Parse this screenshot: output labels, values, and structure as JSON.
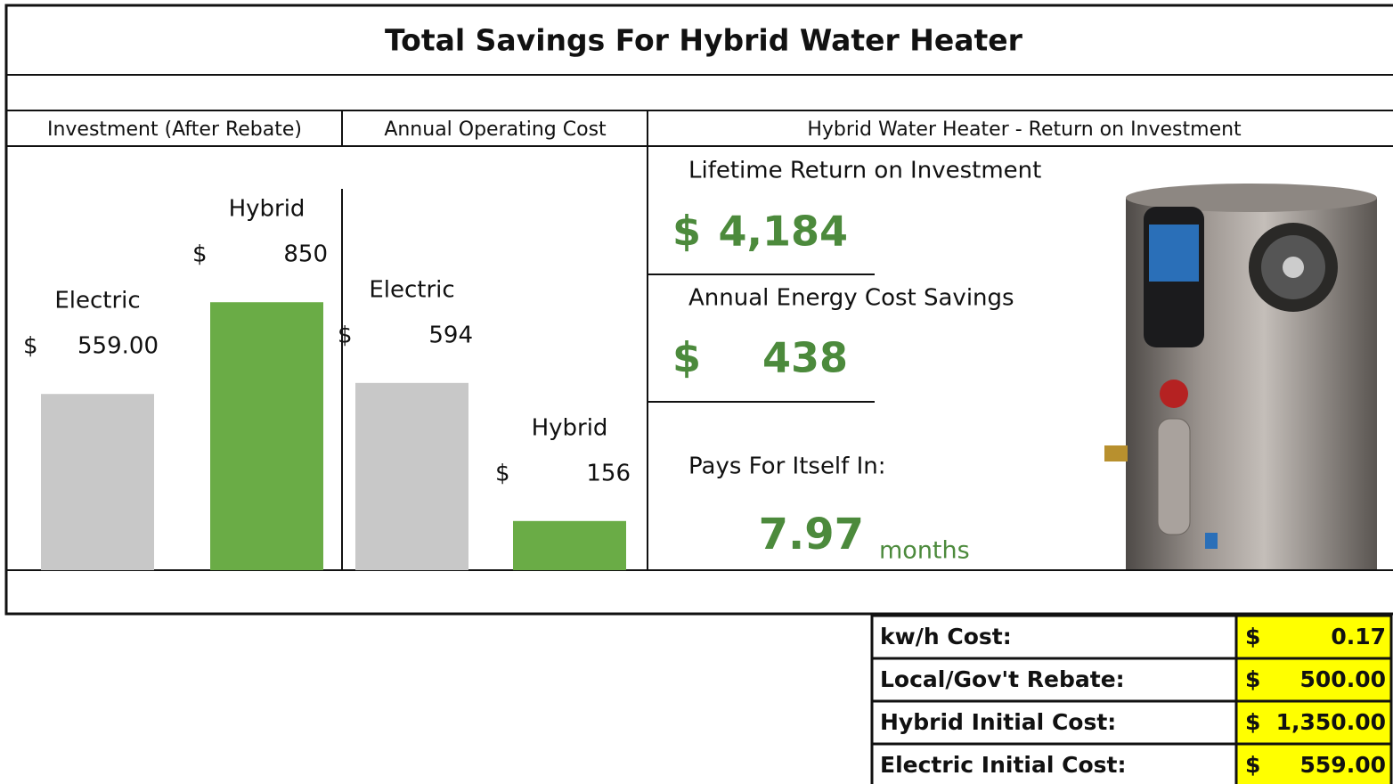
{
  "header": {
    "title": "Total Savings For Hybrid Water Heater"
  },
  "chart_data": [
    {
      "type": "bar",
      "title": "Investment (After Rebate)",
      "categories": [
        "Electric",
        "Hybrid"
      ],
      "currency": "$",
      "values": [
        559,
        850
      ],
      "value_labels": [
        "559.00",
        "850"
      ],
      "colors": [
        "#c8c8c8",
        "#6aac46"
      ],
      "ylim": [
        0,
        1300
      ]
    },
    {
      "type": "bar",
      "title": "Annual Operating Cost",
      "categories": [
        "Electric",
        "Hybrid"
      ],
      "currency": "$",
      "values": [
        594,
        156
      ],
      "colors": [
        "#c8c8c8",
        "#6aac46"
      ],
      "ylim": [
        0,
        1300
      ]
    }
  ],
  "roi": {
    "title": "Hybrid Water Heater - Return on Investment",
    "lifetime_label": "Lifetime Return on Investment",
    "lifetime_currency": "$",
    "lifetime_value": "4,184",
    "annual_label": "Annual Energy Cost Savings",
    "annual_currency": "$",
    "annual_value": "438",
    "payback_label": "Pays For Itself In:",
    "payback_value": "7.97",
    "payback_unit": "months"
  },
  "inputs": {
    "rows": [
      [
        "kw/h Cost:",
        "$",
        "0.17"
      ],
      [
        "Local/Gov't Rebate:",
        "$",
        "500.00"
      ],
      [
        "Hybrid Initial Cost:",
        "$",
        "1,350.00"
      ],
      [
        "Electric Initial Cost:",
        "$",
        "559.00"
      ]
    ]
  }
}
